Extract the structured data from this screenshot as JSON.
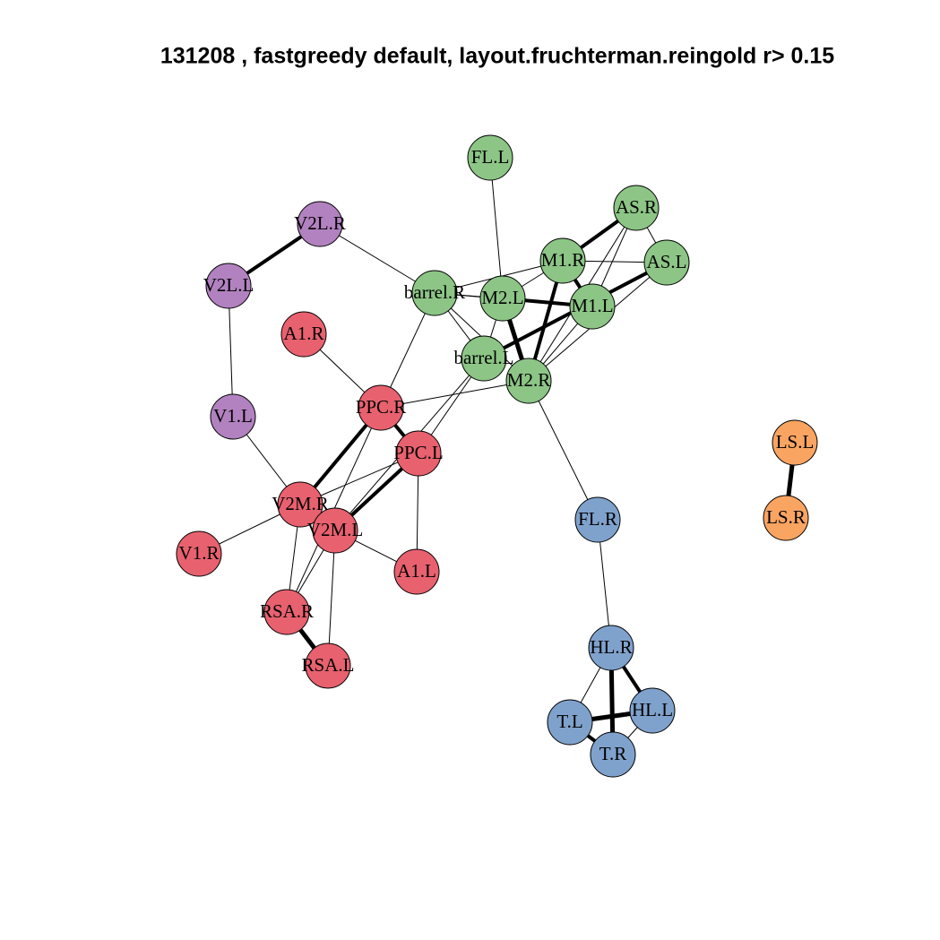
{
  "title": "131208 , fastgreedy default,  layout.fruchterman.reingold r> 0.15",
  "nodes": [
    {
      "label": "FL.L"
    },
    {
      "label": "AS.R"
    },
    {
      "label": "V2L.R"
    },
    {
      "label": "M1.R"
    },
    {
      "label": "AS.L"
    },
    {
      "label": "V2L.L"
    },
    {
      "label": "barrel.R"
    },
    {
      "label": "M2.L"
    },
    {
      "label": "M1.L"
    },
    {
      "label": "A1.R"
    },
    {
      "label": "barrel.L"
    },
    {
      "label": "M2.R"
    },
    {
      "label": "PPC.R"
    },
    {
      "label": "V1.L"
    },
    {
      "label": "LS.L"
    },
    {
      "label": "PPC.L"
    },
    {
      "label": "V2M.R"
    },
    {
      "label": "V2M.L"
    },
    {
      "label": "FL.R"
    },
    {
      "label": "LS.R"
    },
    {
      "label": "V1.R"
    },
    {
      "label": "A1.L"
    },
    {
      "label": "RSA.R"
    },
    {
      "label": "HL.R"
    },
    {
      "label": "RSA.L"
    },
    {
      "label": "HL.L"
    },
    {
      "label": "T.L"
    },
    {
      "label": "T.R"
    }
  ]
}
